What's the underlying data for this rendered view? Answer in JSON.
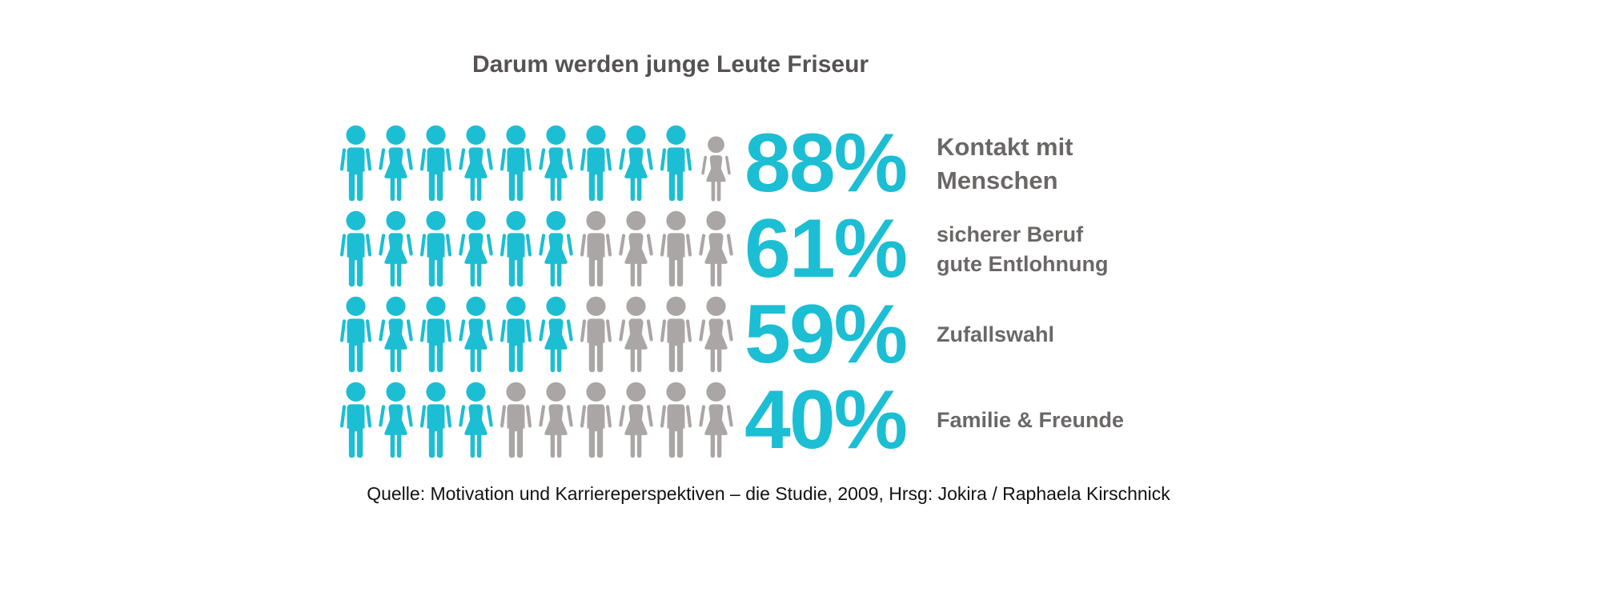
{
  "title": "Darum werden junge Leute Friseur",
  "source_caption": "Quelle: Motivation und Karriereperspektiven – die Studie, 2009, Hrsg: Jokira / Raphaela Kirschnick",
  "colors": {
    "highlight_teal": "#1cbed3",
    "muted_gray": "#aba6a6",
    "title_gray": "#565253",
    "label_gray": "#6b6767",
    "source_text": "#121212"
  },
  "chart_data": {
    "type": "bar",
    "variant": "pictogram",
    "title": "Darum werden junge Leute Friseur",
    "unit": "percent",
    "value_range": [
      0,
      100
    ],
    "icons_per_row": 10,
    "icon_value": 10,
    "icon_pattern": "alternating male/female person silhouettes",
    "categories": [
      "Kontakt mit Menschen",
      "sicherer Beruf gute Entlohnung",
      "Zufallswahl",
      "Familie & Freunde"
    ],
    "values": [
      88,
      61,
      59,
      40
    ],
    "rows": [
      {
        "value": 88,
        "percent_label": "88%",
        "label_lines": [
          "Kontakt mit",
          "Menschen"
        ],
        "label_size": "large",
        "icons_highlighted": 9,
        "muted_style": "small"
      },
      {
        "value": 61,
        "percent_label": "61%",
        "label_lines": [
          "sicherer Beruf",
          "gute Entlohnung"
        ],
        "icons_highlighted": 6
      },
      {
        "value": 59,
        "percent_label": "59%",
        "label_lines": [
          "Zufallswahl"
        ],
        "icons_highlighted": 6
      },
      {
        "value": 40,
        "percent_label": "40%",
        "label_lines": [
          "Familie & Freunde"
        ],
        "icons_highlighted": 4
      }
    ]
  }
}
